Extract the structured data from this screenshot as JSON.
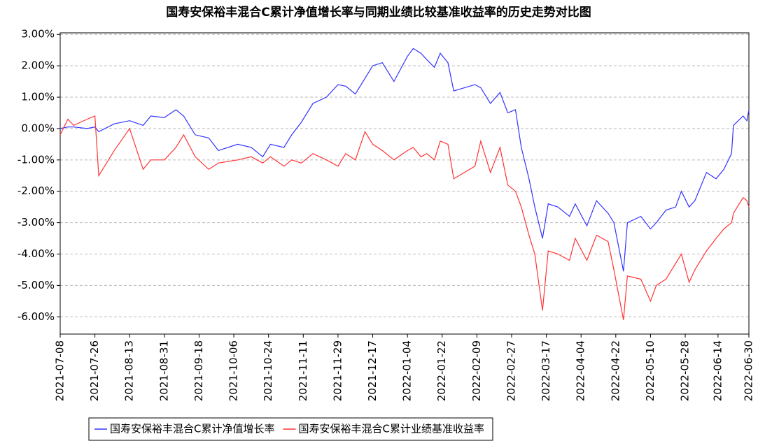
{
  "chart_data": {
    "type": "line",
    "title": "国寿安保裕丰混合C累计净值增长率与同期业绩比较基准收益率的历史走势对比图",
    "x": [
      "2021-07-08",
      "2021-07-12",
      "2021-07-15",
      "2021-07-22",
      "2021-07-26",
      "2021-07-28",
      "2021-08-05",
      "2021-08-13",
      "2021-08-20",
      "2021-08-24",
      "2021-08-31",
      "2021-09-06",
      "2021-09-10",
      "2021-09-16",
      "2021-09-23",
      "2021-09-28",
      "2021-10-08",
      "2021-10-15",
      "2021-10-21",
      "2021-10-25",
      "2021-11-01",
      "2021-11-05",
      "2021-11-10",
      "2021-11-16",
      "2021-11-23",
      "2021-11-29",
      "2021-12-03",
      "2021-12-08",
      "2021-12-13",
      "2021-12-17",
      "2021-12-22",
      "2021-12-28",
      "2022-01-04",
      "2022-01-07",
      "2022-01-11",
      "2022-01-14",
      "2022-01-18",
      "2022-01-21",
      "2022-01-25",
      "2022-01-28",
      "2022-02-08",
      "2022-02-11",
      "2022-02-16",
      "2022-02-21",
      "2022-02-25",
      "2022-03-01",
      "2022-03-04",
      "2022-03-08",
      "2022-03-11",
      "2022-03-15",
      "2022-03-18",
      "2022-03-23",
      "2022-03-29",
      "2022-04-01",
      "2022-04-07",
      "2022-04-12",
      "2022-04-18",
      "2022-04-21",
      "2022-04-26",
      "2022-04-28",
      "2022-05-05",
      "2022-05-10",
      "2022-05-13",
      "2022-05-18",
      "2022-05-23",
      "2022-05-26",
      "2022-05-30",
      "2022-06-02",
      "2022-06-08",
      "2022-06-13",
      "2022-06-17",
      "2022-06-21",
      "2022-06-22",
      "2022-06-27",
      "2022-06-29",
      "2022-06-30"
    ],
    "series": [
      {
        "name": "国寿安保裕丰混合C累计净值增长率",
        "color": "#3333ff",
        "values": [
          0.0,
          0.05,
          0.05,
          0.0,
          0.05,
          -0.1,
          0.15,
          0.25,
          0.1,
          0.4,
          0.35,
          0.6,
          0.4,
          -0.2,
          -0.3,
          -0.7,
          -0.5,
          -0.6,
          -0.9,
          -0.5,
          -0.6,
          -0.2,
          0.2,
          0.8,
          1.0,
          1.4,
          1.35,
          1.1,
          1.6,
          2.0,
          2.1,
          1.5,
          2.3,
          2.55,
          2.4,
          2.2,
          1.95,
          2.4,
          2.1,
          1.2,
          1.4,
          1.3,
          0.8,
          1.15,
          0.5,
          0.6,
          -0.6,
          -1.6,
          -2.5,
          -3.5,
          -2.4,
          -2.5,
          -2.8,
          -2.4,
          -3.1,
          -2.3,
          -2.7,
          -3.0,
          -4.55,
          -3.0,
          -2.8,
          -3.2,
          -3.0,
          -2.6,
          -2.5,
          -2.0,
          -2.5,
          -2.3,
          -1.4,
          -1.6,
          -1.3,
          -0.8,
          0.1,
          0.4,
          0.25,
          0.6
        ]
      },
      {
        "name": "国寿安保裕丰混合C累计业绩基准收益率",
        "color": "#ff3333",
        "values": [
          -0.2,
          0.3,
          0.1,
          0.3,
          0.4,
          -1.5,
          -0.7,
          0.0,
          -1.3,
          -1.0,
          -1.0,
          -0.6,
          -0.2,
          -0.9,
          -1.3,
          -1.1,
          -1.0,
          -0.9,
          -1.1,
          -0.9,
          -1.2,
          -1.0,
          -1.1,
          -0.8,
          -1.0,
          -1.2,
          -0.8,
          -1.0,
          -0.1,
          -0.5,
          -0.7,
          -1.0,
          -0.7,
          -0.6,
          -0.9,
          -0.8,
          -1.0,
          -0.4,
          -0.5,
          -1.6,
          -1.2,
          -0.4,
          -1.4,
          -0.6,
          -1.8,
          -2.0,
          -2.5,
          -3.4,
          -4.0,
          -5.8,
          -3.9,
          -4.0,
          -4.2,
          -3.5,
          -4.2,
          -3.4,
          -3.6,
          -4.5,
          -6.1,
          -4.7,
          -4.8,
          -5.5,
          -5.0,
          -4.8,
          -4.3,
          -4.0,
          -4.9,
          -4.5,
          -3.9,
          -3.5,
          -3.2,
          -3.0,
          -2.7,
          -2.2,
          -2.3,
          -2.5
        ]
      }
    ],
    "xlim": [
      "2021-07-08",
      "2022-06-30"
    ],
    "xticks": [
      "2021-07-08",
      "2021-07-26",
      "2021-08-13",
      "2021-08-31",
      "2021-09-18",
      "2021-10-06",
      "2021-10-24",
      "2021-11-11",
      "2021-11-29",
      "2021-12-17",
      "2022-01-04",
      "2022-01-22",
      "2022-02-09",
      "2022-02-27",
      "2022-03-17",
      "2022-04-04",
      "2022-04-22",
      "2022-05-10",
      "2022-05-28",
      "2022-06-14",
      "2022-06-30"
    ],
    "ylim": [
      -6.55,
      3.05
    ],
    "yticks": [
      {
        "value": 3,
        "label": "3.00%"
      },
      {
        "value": 2,
        "label": "2.00%"
      },
      {
        "value": 1,
        "label": "1.00%"
      },
      {
        "value": 0,
        "label": "0.00%"
      },
      {
        "value": -1,
        "label": "-1.00%"
      },
      {
        "value": -2,
        "label": "-2.00%"
      },
      {
        "value": -3,
        "label": "-3.00%"
      },
      {
        "value": -4,
        "label": "-4.00%"
      },
      {
        "value": -5,
        "label": "-5.00%"
      },
      {
        "value": -6,
        "label": "-6.00%"
      }
    ],
    "grid": true
  }
}
